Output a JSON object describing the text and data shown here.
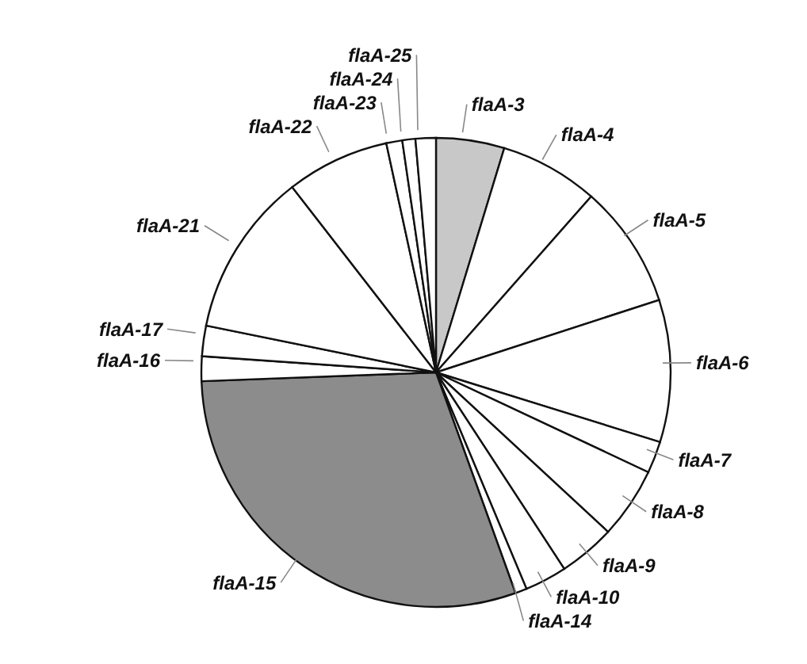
{
  "chart_data": {
    "type": "pie",
    "categories": [
      "flaA-3",
      "flaA-4",
      "flaA-5",
      "flaA-6",
      "flaA-7",
      "flaA-8",
      "flaA-9",
      "flaA-10",
      "flaA-14",
      "flaA-15",
      "flaA-16",
      "flaA-17",
      "flaA-21",
      "flaA-22",
      "flaA-23",
      "flaA-24",
      "flaA-25"
    ],
    "values": [
      4.7,
      6.8,
      8.5,
      9.8,
      2.2,
      4.9,
      3.9,
      2.9,
      0.8,
      29.9,
      1.7,
      2.1,
      11.3,
      7.1,
      1.1,
      0.9,
      1.4
    ],
    "colors": [
      "#c8c8c8",
      "#ffffff",
      "#ffffff",
      "#ffffff",
      "#ffffff",
      "#ffffff",
      "#ffffff",
      "#ffffff",
      "#ffffff",
      "#8c8c8c",
      "#ffffff",
      "#ffffff",
      "#ffffff",
      "#ffffff",
      "#ffffff",
      "#ffffff",
      "#ffffff"
    ]
  }
}
